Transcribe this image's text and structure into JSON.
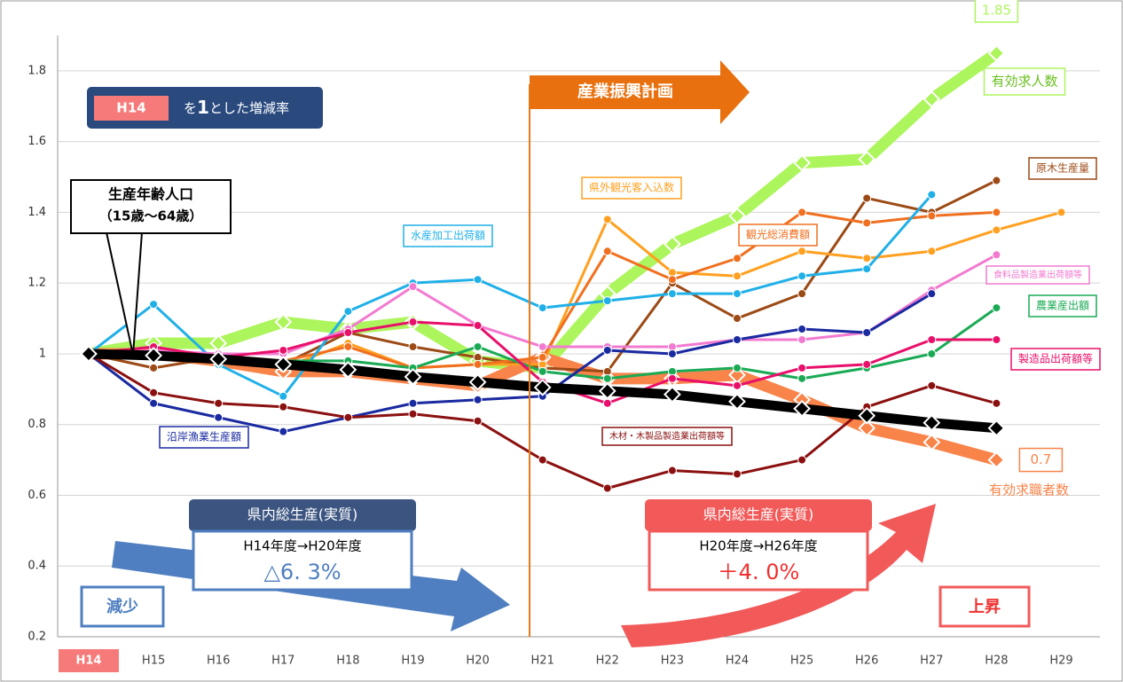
{
  "chart_data": {
    "type": "line",
    "categories": [
      "H14",
      "H15",
      "H16",
      "H17",
      "H18",
      "H19",
      "H20",
      "H21",
      "H22",
      "H23",
      "H24",
      "H25",
      "H26",
      "H27",
      "H28",
      "H29"
    ],
    "ylim": [
      0.2,
      1.9
    ],
    "yticks": [
      0.2,
      0.4,
      0.6,
      0.8,
      1,
      1.2,
      1.4,
      1.6,
      1.8
    ],
    "grid": true,
    "series": [
      {
        "name": "有効求人数",
        "color": "#adf55c",
        "values": [
          1.0,
          1.03,
          1.03,
          1.09,
          1.07,
          1.09,
          0.98,
          0.96,
          1.17,
          1.31,
          1.39,
          1.54,
          1.55,
          1.72,
          1.85,
          null
        ],
        "value_labels": [
          null,
          null,
          null,
          null,
          null,
          null,
          null,
          null,
          null,
          null,
          null,
          null,
          null,
          null,
          "1.85",
          null
        ]
      },
      {
        "name": "有効求職者数",
        "color": "#f9844a",
        "values": [
          1.0,
          1.0,
          0.98,
          0.95,
          0.95,
          0.93,
          0.91,
          0.99,
          0.93,
          0.93,
          0.94,
          0.87,
          0.79,
          0.75,
          0.7,
          null
        ],
        "value_labels": [
          null,
          null,
          null,
          null,
          null,
          null,
          null,
          null,
          null,
          null,
          null,
          null,
          null,
          null,
          "0.7",
          null
        ]
      },
      {
        "name": "生産年齢人口",
        "color": "#000000",
        "values": [
          1.0,
          0.995,
          0.985,
          0.97,
          0.955,
          0.935,
          0.92,
          0.905,
          0.895,
          0.885,
          0.865,
          0.845,
          0.825,
          0.805,
          0.79,
          null
        ]
      },
      {
        "name": "原木生産量",
        "color": "#9c4a16",
        "values": [
          1.0,
          0.96,
          0.99,
          0.97,
          1.06,
          1.02,
          0.99,
          0.96,
          0.95,
          1.2,
          1.1,
          1.17,
          1.44,
          1.4,
          1.49,
          null
        ]
      },
      {
        "name": "県外観光客入込数",
        "color": "#ffa020",
        "values": [
          1.0,
          0.99,
          0.99,
          0.96,
          1.03,
          0.96,
          0.97,
          0.97,
          1.38,
          1.23,
          1.22,
          1.29,
          1.27,
          1.29,
          1.35,
          1.4
        ]
      },
      {
        "name": "観光総消費額",
        "color": "#f07020",
        "values": [
          1.0,
          1.0,
          0.99,
          0.98,
          1.02,
          0.96,
          0.97,
          0.99,
          1.29,
          1.21,
          1.27,
          1.4,
          1.37,
          1.39,
          1.4,
          null
        ]
      },
      {
        "name": "水産加工出荷額",
        "color": "#20b0e8",
        "values": [
          1.0,
          1.14,
          0.97,
          0.88,
          1.12,
          1.2,
          1.21,
          1.13,
          1.15,
          1.17,
          1.17,
          1.22,
          1.24,
          1.45,
          null,
          null
        ]
      },
      {
        "name": "食料品製造業出荷額等",
        "color": "#f27ad0",
        "values": [
          1.0,
          1.01,
          1.0,
          1.0,
          1.07,
          1.19,
          1.08,
          1.02,
          1.02,
          1.02,
          1.04,
          1.04,
          1.06,
          1.18,
          1.28,
          null
        ]
      },
      {
        "name": "農業産出額",
        "color": "#1aaa55",
        "values": [
          1.0,
          1.0,
          0.99,
          0.98,
          0.98,
          0.96,
          1.02,
          0.95,
          0.93,
          0.95,
          0.96,
          0.93,
          0.96,
          1.0,
          1.13,
          null
        ]
      },
      {
        "name": "製造品出荷額等",
        "color": "#e8106a",
        "values": [
          1.0,
          1.02,
          0.99,
          1.01,
          1.06,
          1.09,
          1.08,
          0.92,
          0.86,
          0.93,
          0.91,
          0.96,
          0.97,
          1.04,
          1.04,
          null
        ]
      },
      {
        "name": "沿岸漁業生産額",
        "color": "#1a2aa0",
        "values": [
          1.0,
          0.86,
          0.82,
          0.78,
          0.82,
          0.86,
          0.87,
          0.88,
          1.01,
          1.0,
          1.04,
          1.07,
          1.06,
          1.17,
          null,
          null
        ]
      },
      {
        "name": "木材・木製品製造業出荷額等",
        "color": "#8b1010",
        "values": [
          1.0,
          0.89,
          0.86,
          0.85,
          0.82,
          0.83,
          0.81,
          0.7,
          0.62,
          0.67,
          0.66,
          0.7,
          0.85,
          0.91,
          0.86,
          null
        ]
      }
    ],
    "annotations": {
      "base_note": {
        "badge": "H14",
        "text1": "を",
        "emph": "1",
        "text2": "とした増減率"
      },
      "plan": "産業振興計画",
      "population_sub": "（15歳～64歳）",
      "gdp_left": {
        "title": "県内総生産(実質)",
        "period": "H14年度→H20年度",
        "change": "△6. 3%",
        "trend": "減少"
      },
      "gdp_right": {
        "title": "県内総生産(実質)",
        "period": "H20年度→H26年度",
        "change": "＋4. 0%",
        "trend": "上昇"
      }
    }
  }
}
